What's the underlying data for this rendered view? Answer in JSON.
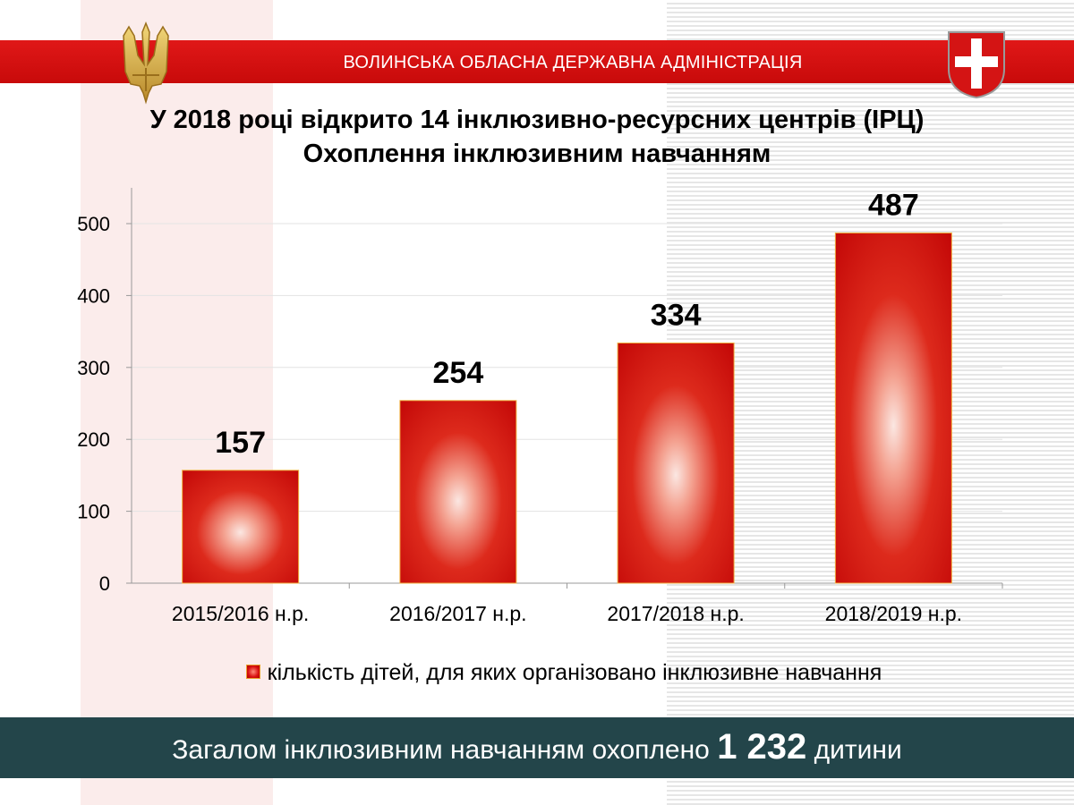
{
  "header": {
    "org_name": "ВОЛИНСЬКА ОБЛАСНА ДЕРЖАВНА АДМІНІСТРАЦІЯ"
  },
  "title": {
    "line1": "У 2018 році відкрито 14 інклюзивно-ресурсних центрів (ІРЦ)",
    "line2": "Охоплення інклюзивним навчанням"
  },
  "colors": {
    "header_red": "#d01010",
    "bar_red": "#d91010",
    "footer_teal": "#23454a"
  },
  "chart_data": {
    "type": "bar",
    "categories": [
      "2015/2016 н.р.",
      "2016/2017 н.р.",
      "2017/2018 н.р.",
      "2018/2019 н.р."
    ],
    "series": [
      {
        "name": "кількість дітей, для яких організовано інклюзивне навчання",
        "values": [
          157,
          254,
          334,
          487
        ]
      }
    ],
    "data_labels": [
      "157",
      "254",
      "334",
      "487"
    ],
    "ylim": [
      0,
      500
    ],
    "yticks": [
      0,
      100,
      200,
      300,
      400,
      500
    ],
    "ytick_labels": [
      "0",
      "100",
      "200",
      "300",
      "400",
      "500"
    ],
    "grid": true,
    "legend_position": "bottom"
  },
  "legend": {
    "label": "кількість дітей, для яких організовано інклюзивне навчання"
  },
  "footer": {
    "prefix": "Загалом інклюзивним навчанням охоплено ",
    "total": "1 232",
    "suffix": " дитини"
  }
}
